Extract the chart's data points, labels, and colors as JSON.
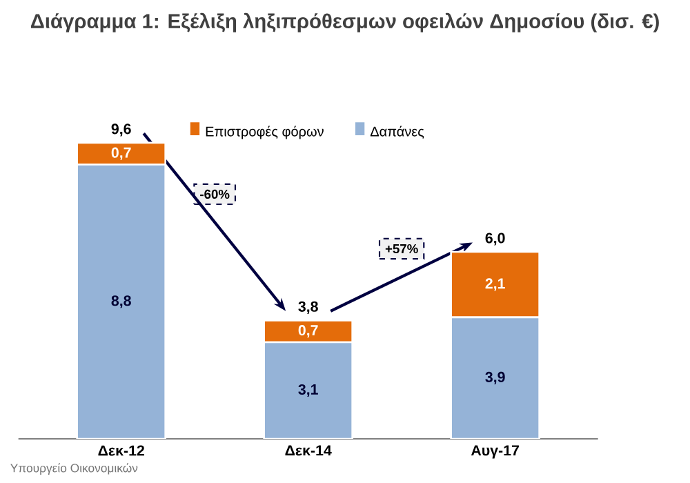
{
  "chart_data": {
    "type": "bar",
    "stacked": true,
    "title": "Διάγραμμα 1: Εξέλιξη ληξιπρόθεσμων οφειλών Δημοσίου (δισ. €)",
    "categories": [
      "Δεκ-12",
      "Δεκ-14",
      "Αυγ-17"
    ],
    "series": [
      {
        "name": "Δαπάνες",
        "color": "#95b3d7",
        "values": [
          8.8,
          3.1,
          3.9
        ],
        "value_labels": [
          "8,8",
          "3,1",
          "3,9"
        ]
      },
      {
        "name": "Επιστροφές φόρων",
        "color": "#e46c0a",
        "values": [
          0.7,
          0.7,
          2.1
        ],
        "value_labels": [
          "0,7",
          "0,7",
          "2,1"
        ]
      }
    ],
    "totals": [
      "9,6",
      "3,8",
      "6,0"
    ],
    "annotations": [
      "-60%",
      "+57%",
      "Υπουργείο Οικονομικών"
    ],
    "legend": "top"
  }
}
